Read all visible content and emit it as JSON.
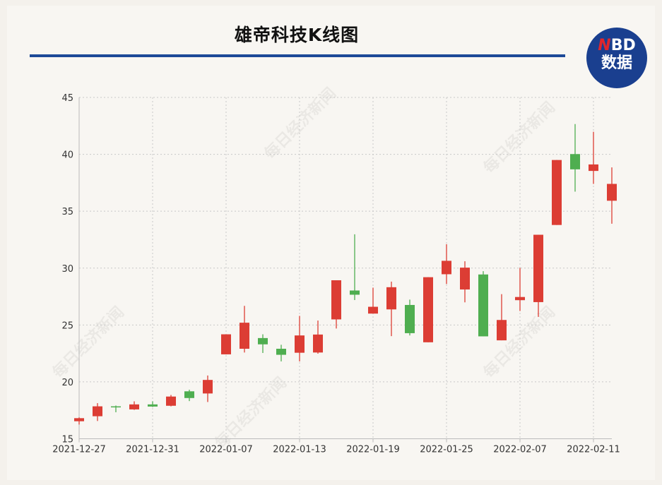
{
  "header": {
    "title": "雄帝科技K线图",
    "logo_line1_accent": "N",
    "logo_line1_rest": "BD",
    "logo_line2": "数据"
  },
  "watermark": "每日经济新闻",
  "chart_data": {
    "type": "candlestick",
    "title": "雄帝科技K线图",
    "xlabel": "",
    "ylabel": "",
    "ylim": [
      15,
      45
    ],
    "yticks": [
      15,
      20,
      25,
      30,
      35,
      40,
      45
    ],
    "xtick_labels": [
      "2021-12-27",
      "2021-12-31",
      "2022-01-07",
      "2022-01-13",
      "2022-01-19",
      "2022-01-25",
      "2022-02-07",
      "2022-02-11"
    ],
    "grid": true,
    "up_color": "#dc3d34",
    "down_color": "#4fae50",
    "dates": [
      "2021-12-27",
      "2021-12-28",
      "2021-12-29",
      "2021-12-30",
      "2021-12-31",
      "2022-01-04",
      "2022-01-05",
      "2022-01-06",
      "2022-01-07",
      "2022-01-10",
      "2022-01-11",
      "2022-01-12",
      "2022-01-13",
      "2022-01-14",
      "2022-01-17",
      "2022-01-18",
      "2022-01-19",
      "2022-01-20",
      "2022-01-21",
      "2022-01-24",
      "2022-01-25",
      "2022-01-26",
      "2022-01-27",
      "2022-01-28",
      "2022-02-07",
      "2022-02-08",
      "2022-02-09",
      "2022-02-10",
      "2022-02-11",
      "2022-02-14"
    ],
    "ohlc": [
      [
        16.54,
        16.88,
        16.25,
        16.81
      ],
      [
        16.98,
        18.13,
        16.56,
        17.85
      ],
      [
        17.85,
        17.92,
        17.33,
        17.77
      ],
      [
        17.58,
        18.29,
        17.54,
        18.02
      ],
      [
        18.02,
        18.29,
        17.79,
        17.83
      ],
      [
        17.9,
        18.85,
        17.85,
        18.71
      ],
      [
        19.17,
        19.31,
        18.31,
        18.58
      ],
      [
        18.98,
        20.56,
        18.23,
        20.17
      ],
      [
        22.42,
        24.18,
        22.42,
        24.18
      ],
      [
        22.91,
        26.68,
        22.58,
        25.2
      ],
      [
        23.85,
        24.18,
        22.54,
        23.3
      ],
      [
        22.91,
        23.26,
        21.8,
        22.38
      ],
      [
        22.56,
        25.8,
        21.8,
        24.08
      ],
      [
        22.58,
        25.39,
        22.48,
        24.16
      ],
      [
        25.49,
        28.93,
        24.69,
        28.93
      ],
      [
        28.03,
        32.97,
        27.19,
        27.66
      ],
      [
        26.0,
        28.28,
        26.0,
        26.6
      ],
      [
        26.37,
        28.81,
        24.02,
        28.32
      ],
      [
        26.76,
        27.23,
        24.08,
        24.28
      ],
      [
        23.48,
        29.2,
        23.48,
        29.2
      ],
      [
        29.46,
        32.1,
        28.6,
        30.64
      ],
      [
        28.12,
        30.6,
        26.99,
        30.04
      ],
      [
        29.44,
        29.73,
        24.0,
        24.0
      ],
      [
        23.65,
        27.71,
        23.65,
        25.44
      ],
      [
        27.18,
        30.02,
        26.23,
        27.46
      ],
      [
        27.01,
        32.93,
        25.71,
        32.93
      ],
      [
        33.79,
        39.5,
        33.79,
        39.5
      ],
      [
        40.02,
        42.66,
        36.72,
        38.68
      ],
      [
        38.54,
        41.98,
        37.4,
        39.11
      ],
      [
        35.92,
        38.85,
        33.9,
        37.4
      ]
    ]
  }
}
